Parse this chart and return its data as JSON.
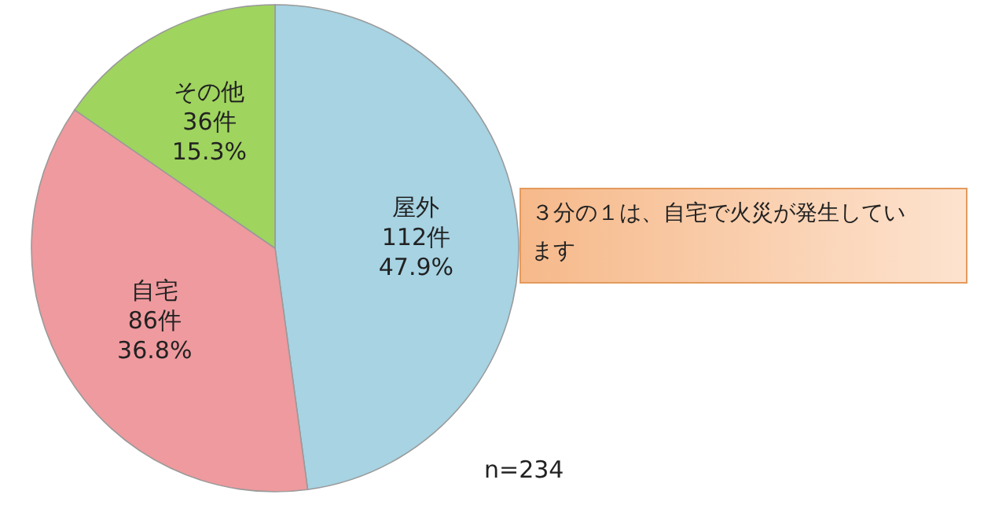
{
  "chart_data": {
    "type": "pie",
    "categories": [
      "屋外",
      "自宅",
      "その他"
    ],
    "values": [
      112,
      86,
      36
    ],
    "value_labels": [
      "112件\n47.9%",
      "86件\n36.8%",
      "36件\n15.3%"
    ],
    "colors": [
      "#a7d3e3",
      "#ef9a9e",
      "#9fd45e"
    ],
    "annotations": [
      "３分の１は、自宅で火災が発生しています",
      "n=234"
    ]
  }
}
